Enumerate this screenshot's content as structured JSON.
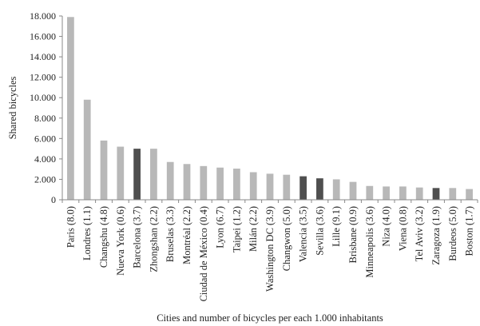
{
  "chart_data": {
    "type": "bar",
    "title": "",
    "xlabel": "Cities  and  number  of  bicycles  per  each  1.000  inhabitants",
    "ylabel": "Shared bicycles",
    "ylim": [
      0,
      18000
    ],
    "yticks": [
      "0",
      "2.000",
      "4.000",
      "6.000",
      "8.000",
      "10.000",
      "12.000",
      "14.000",
      "16.000",
      "18.000"
    ],
    "grid": false,
    "categories": [
      "Paris (8.0)",
      "Londres (1.1)",
      "Changshu (4.8)",
      "Nueva York (0.6)",
      "Barcelona (3.7)",
      "Zhongshan (2.2)",
      "Bruselas (3.3)",
      "Montréal (2.2)",
      "Ciudad de México (0.4)",
      "Lyon (6.7)",
      "Taipei (1.2)",
      "Milán (2.2)",
      "Washington DC (3.9)",
      "Changwon (5.0)",
      "Valencia (3.5)",
      "Sevilla (3.6)",
      "Lille (9.1)",
      "Brisbane (0.9)",
      "Minneapolis (3.6)",
      "Niza (4.0)",
      "Viena (0.8)",
      "Tel Aviv (3.2)",
      "Zaragoza (1.9)",
      "Burdeos (5.0)",
      "Boston (1.7)"
    ],
    "values": [
      17900,
      9800,
      5800,
      5200,
      5000,
      5000,
      3700,
      3500,
      3300,
      3150,
      3050,
      2700,
      2550,
      2450,
      2300,
      2100,
      2000,
      1750,
      1350,
      1300,
      1300,
      1200,
      1150,
      1150,
      1050
    ],
    "highlighted": [
      "Barcelona (3.7)",
      "Valencia (3.5)",
      "Sevilla (3.6)",
      "Zaragoza (1.9)"
    ],
    "colors": {
      "bar": "#b8b8b8",
      "bar_highlight": "#4f4f4f",
      "axis": "#888888"
    }
  }
}
